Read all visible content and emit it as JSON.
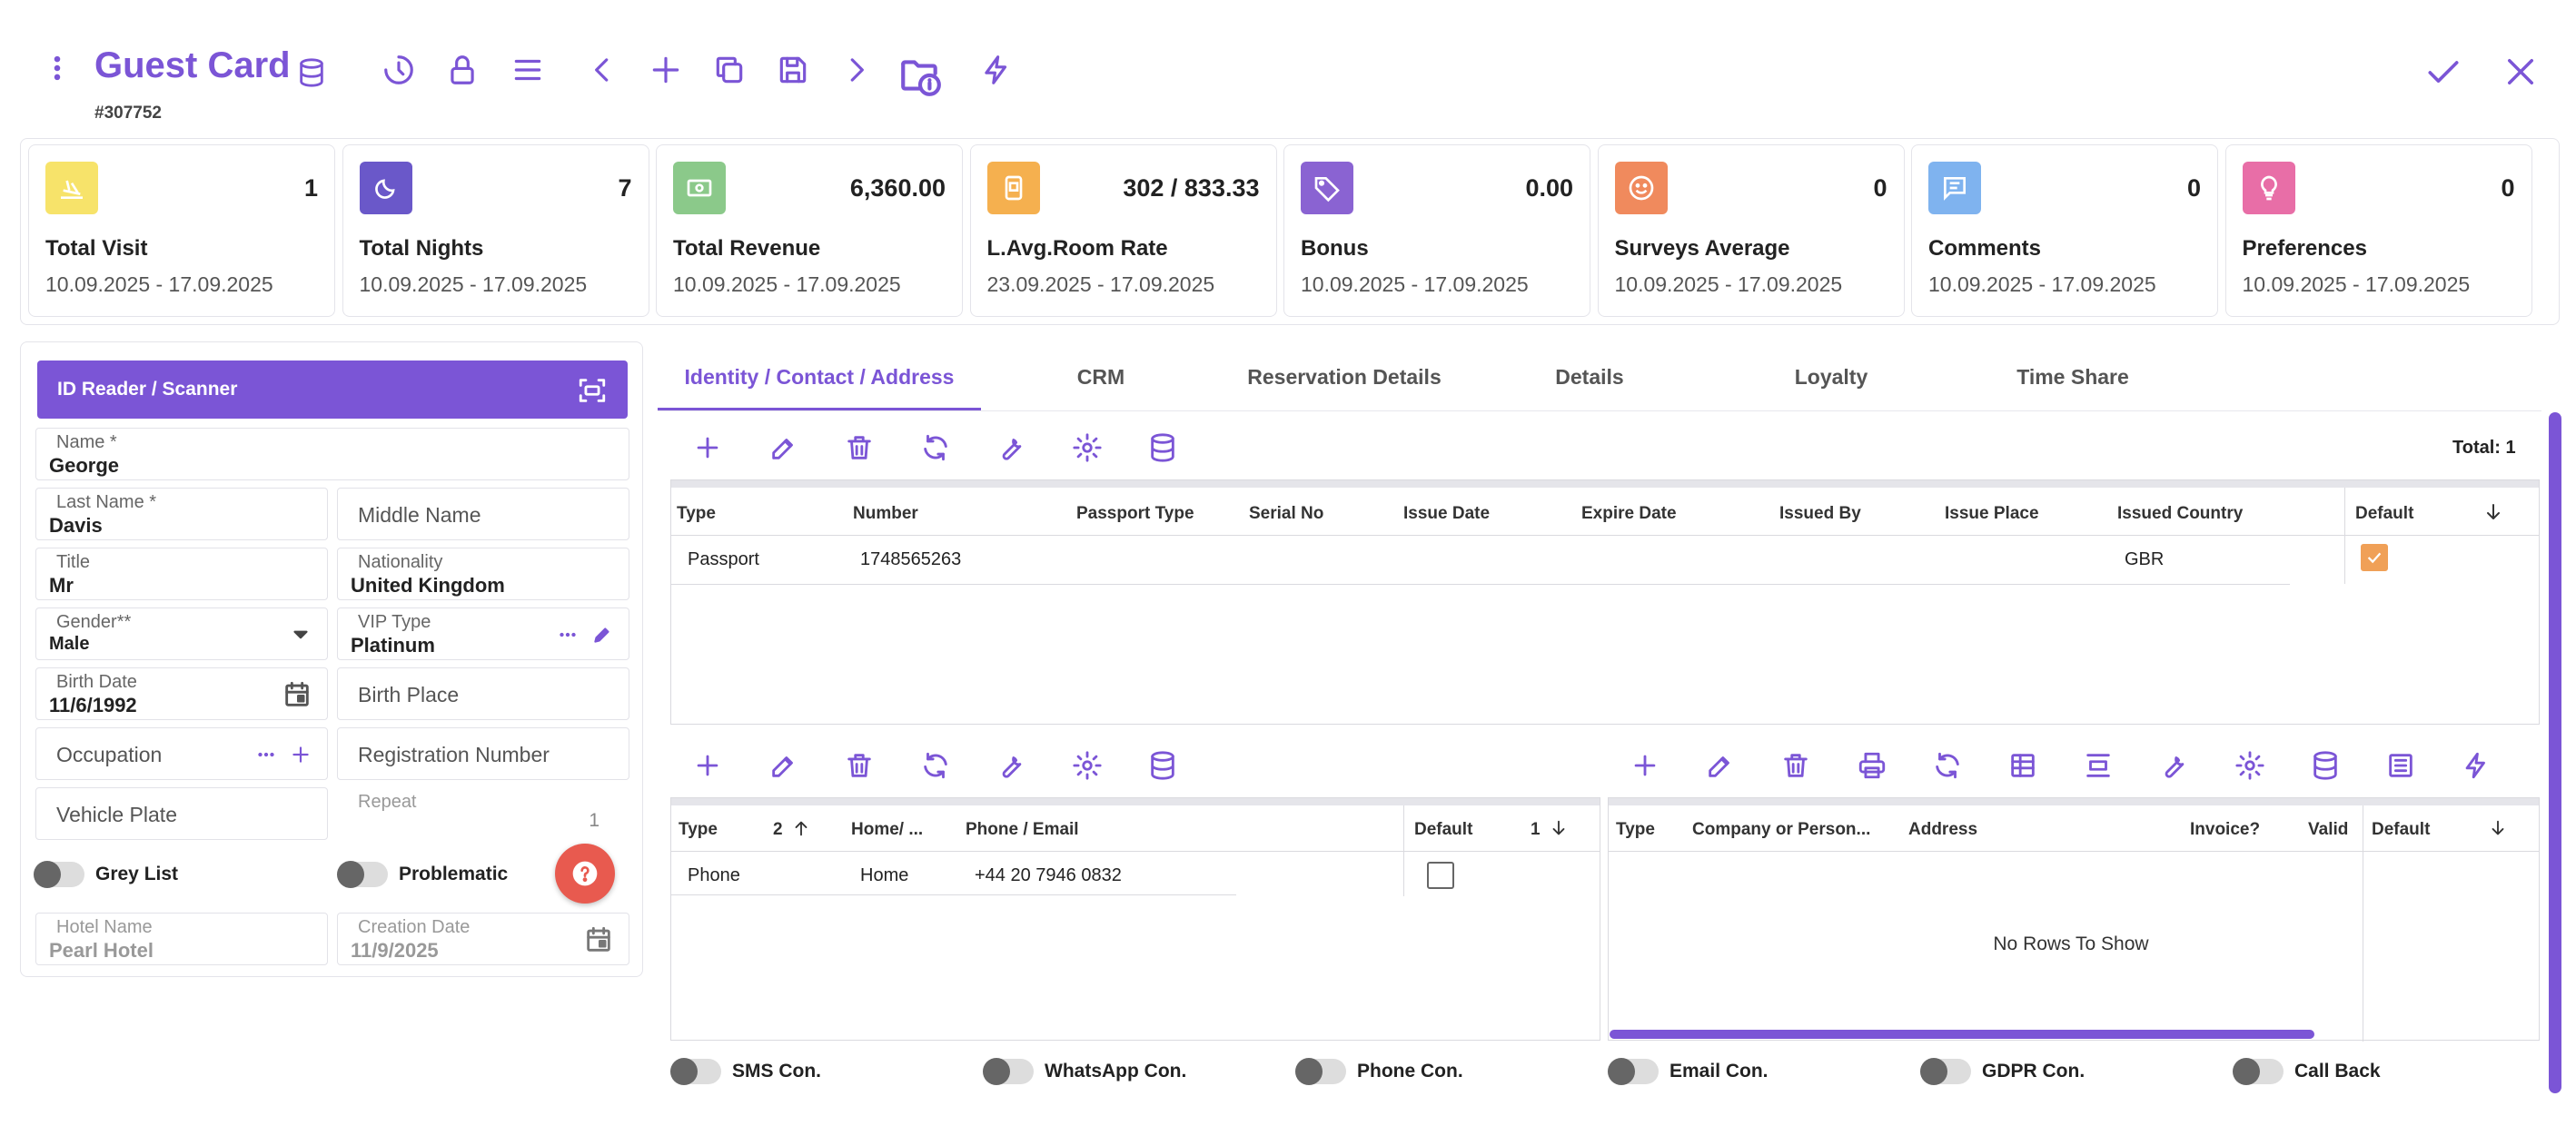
{
  "header": {
    "title": "Guest Card",
    "record_id": "#307752"
  },
  "stats": [
    {
      "label": "Total Visit",
      "value": "1",
      "range": "10.09.2025 - 17.09.2025",
      "color": "#f7e36a",
      "icon": "plane-landing-icon"
    },
    {
      "label": "Total Nights",
      "value": "7",
      "range": "10.09.2025 - 17.09.2025",
      "color": "#6a58c9",
      "icon": "moon-icon"
    },
    {
      "label": "Total Revenue",
      "value": "6,360.00",
      "range": "10.09.2025 - 17.09.2025",
      "color": "#8bc98a",
      "icon": "cash-icon"
    },
    {
      "label": "L.Avg.Room Rate",
      "value": "302 / 833.33",
      "range": "23.09.2025 - 17.09.2025",
      "color": "#f5b04f",
      "icon": "phone-card-icon"
    },
    {
      "label": "Bonus",
      "value": "0.00",
      "range": "10.09.2025 - 17.09.2025",
      "color": "#8a63d2",
      "icon": "tag-icon"
    },
    {
      "label": "Surveys Average",
      "value": "0",
      "range": "10.09.2025 - 17.09.2025",
      "color": "#f08a5d",
      "icon": "smile-icon"
    },
    {
      "label": "Comments",
      "value": "0",
      "range": "10.09.2025 - 17.09.2025",
      "color": "#7fb3ef",
      "icon": "comment-icon"
    },
    {
      "label": "Preferences",
      "value": "0",
      "range": "10.09.2025 - 17.09.2025",
      "color": "#e86ea7",
      "icon": "bulb-icon"
    }
  ],
  "form": {
    "id_reader": "ID Reader / Scanner",
    "name": {
      "label": "Name *",
      "value": "George"
    },
    "last_name": {
      "label": "Last Name *",
      "value": "Davis"
    },
    "middle_name": {
      "placeholder": "Middle Name"
    },
    "title": {
      "label": "Title",
      "value": "Mr"
    },
    "nationality": {
      "label": "Nationality",
      "value": "United Kingdom"
    },
    "gender": {
      "label": "Gender**",
      "value": "Male"
    },
    "vip_type": {
      "label": "VIP Type",
      "value": "Platinum"
    },
    "birth_date": {
      "label": "Birth Date",
      "value": "11/6/1992"
    },
    "birth_place": {
      "placeholder": "Birth Place"
    },
    "occupation": {
      "placeholder": "Occupation"
    },
    "registration_number": {
      "placeholder": "Registration Number"
    },
    "vehicle_plate": {
      "placeholder": "Vehicle Plate"
    },
    "repeat": {
      "label": "Repeat",
      "value": "1"
    },
    "grey_list": "Grey List",
    "problematic": "Problematic",
    "hotel_name": {
      "label": "Hotel Name",
      "value": "Pearl Hotel"
    },
    "creation_date": {
      "label": "Creation Date",
      "value": "11/9/2025"
    }
  },
  "tabs": [
    "Identity / Contact / Address",
    "CRM",
    "Reservation Details",
    "Details",
    "Loyalty",
    "Time Share"
  ],
  "identity_grid": {
    "total": "Total: 1",
    "columns": [
      "Type",
      "Number",
      "Passport Type",
      "Serial No",
      "Issue Date",
      "Expire Date",
      "Issued By",
      "Issue Place",
      "Issued Country",
      "Default"
    ],
    "row": {
      "type": "Passport",
      "number": "1748565263",
      "country": "GBR"
    }
  },
  "contact_grid": {
    "columns": [
      "Type",
      "2",
      "Home/ ...",
      "Phone / Email",
      "Default",
      "1"
    ],
    "row": {
      "type": "Phone",
      "home": "Home",
      "value": "+44 20 7946 0832"
    }
  },
  "address_grid": {
    "columns": [
      "Type",
      "Company or Person...",
      "Address",
      "Invoice?",
      "Valid",
      "Default"
    ],
    "empty": "No Rows To Show"
  },
  "consents": [
    "SMS Con.",
    "WhatsApp Con.",
    "Phone Con.",
    "Email Con.",
    "GDPR Con.",
    "Call Back"
  ]
}
